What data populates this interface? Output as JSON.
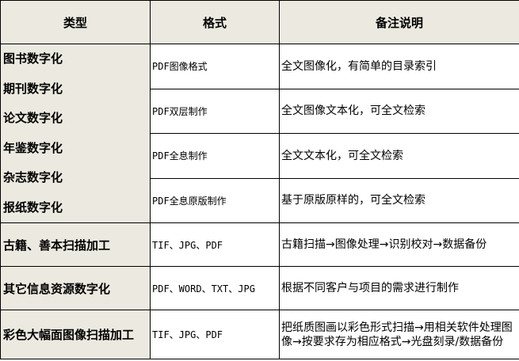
{
  "headers": [
    "类型",
    "格式",
    "备注说明"
  ],
  "digitization_types": [
    "图书数字化",
    "期刊数字化",
    "论文数字化",
    "年鉴数字化",
    "杂志数字化",
    "报纸数字化"
  ],
  "digitization_rows": [
    {
      "format": "PDF图像格式",
      "note": "全文图像化，有简单的目录索引"
    },
    {
      "format": "PDF双层制作",
      "note": "全文图像文本化，可全文检索"
    },
    {
      "format": "PDF全息制作",
      "note": "全文文本化，可全文检索"
    },
    {
      "format": "PDF全息原版制作",
      "note": "基于原版原样的，可全文检索"
    }
  ],
  "other_rows": [
    {
      "type": "古籍、善本扫描加工",
      "format": "TIF、JPG、PDF",
      "note": "古籍扫描→图像处理→识别校对→数据备份"
    },
    {
      "type": "其它信息资源数字化",
      "format": "PDF、WORD、TXT、JPG",
      "note": "根据不同客户与项目的需求进行制作"
    },
    {
      "type": "彩色大幅面图像扫描加工",
      "format": "TIF、JPG、PDF",
      "note": "把纸质图画以彩色形式扫描→用相关软件处理图像→按要求存为相应格式→光盘刻录/数据备份"
    }
  ]
}
